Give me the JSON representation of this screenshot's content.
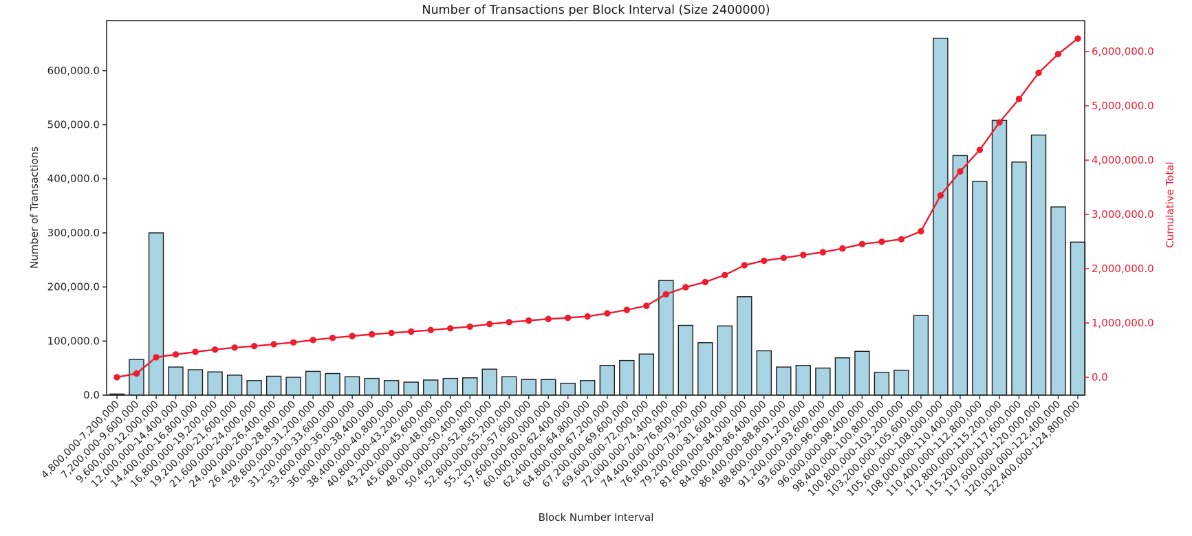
{
  "colors": {
    "bar_fill": "#A7D3E2",
    "bar_edge": "#1c1c1c",
    "line": "#ED1C2E",
    "spine": "#2a2a2a",
    "tick_text": "#262626",
    "title_text": "#1a1a1a"
  },
  "chart_data": {
    "type": "bar",
    "title": "Number of Transactions per Block Interval (Size 2400000)",
    "xlabel": "Block Number Interval",
    "ylabel_left": "Number of Transactions",
    "ylabel_right": "Cumulative Total",
    "legend": "none",
    "grid": false,
    "categories": [
      "4,800,000-7,200,000",
      "7,200,000-9,600,000",
      "9,600,000-12,000,000",
      "12,000,000-14,400,000",
      "14,400,000-16,800,000",
      "16,800,000-19,200,000",
      "19,200,000-21,600,000",
      "21,600,000-24,000,000",
      "24,000,000-26,400,000",
      "26,400,000-28,800,000",
      "28,800,000-31,200,000",
      "31,200,000-33,600,000",
      "33,600,000-36,000,000",
      "36,000,000-38,400,000",
      "38,400,000-40,800,000",
      "40,800,000-43,200,000",
      "43,200,000-45,600,000",
      "45,600,000-48,000,000",
      "48,000,000-50,400,000",
      "50,400,000-52,800,000",
      "52,800,000-55,200,000",
      "55,200,000-57,600,000",
      "57,600,000-60,000,000",
      "60,000,000-62,400,000",
      "62,400,000-64,800,000",
      "64,800,000-67,200,000",
      "67,200,000-69,600,000",
      "69,600,000-72,000,000",
      "72,000,000-74,400,000",
      "74,400,000-76,800,000",
      "76,800,000-79,200,000",
      "79,200,000-81,600,000",
      "81,600,000-84,000,000",
      "84,000,000-86,400,000",
      "86,400,000-88,800,000",
      "88,800,000-91,200,000",
      "91,200,000-93,600,000",
      "93,600,000-96,000,000",
      "96,000,000-98,400,000",
      "98,400,000-100,800,000",
      "100,800,000-103,200,000",
      "103,200,000-105,600,000",
      "105,600,000-108,000,000",
      "108,000,000-110,400,000",
      "110,400,000-112,800,000",
      "112,800,000-115,200,000",
      "115,200,000-117,600,000",
      "117,600,000-120,000,000",
      "120,000,000-122,400,000",
      "122,400,000-124,800,000"
    ],
    "series": [
      {
        "name": "Number of Transactions",
        "type": "bar",
        "axis": "left",
        "values": [
          2000,
          66000,
          300000,
          52000,
          47000,
          43000,
          37000,
          27000,
          35000,
          33000,
          44000,
          40000,
          34000,
          31000,
          27000,
          24000,
          28000,
          31000,
          32000,
          48000,
          34000,
          29000,
          29000,
          22000,
          27000,
          55000,
          64000,
          76000,
          212000,
          129000,
          97000,
          128000,
          182000,
          82000,
          52000,
          55000,
          50000,
          69000,
          81000,
          42000,
          46000,
          147000,
          660000,
          443000,
          395000,
          508000,
          431000,
          481000,
          348000,
          283000
        ]
      },
      {
        "name": "Cumulative Total",
        "type": "line",
        "axis": "right",
        "values": [
          2000,
          68000,
          368000,
          420000,
          467000,
          510000,
          547000,
          574000,
          609000,
          642000,
          686000,
          726000,
          760000,
          791000,
          818000,
          842000,
          870000,
          901000,
          933000,
          981000,
          1015000,
          1044000,
          1073000,
          1095000,
          1122000,
          1177000,
          1241000,
          1317000,
          1529000,
          1658000,
          1755000,
          1883000,
          2065000,
          2147000,
          2199000,
          2254000,
          2304000,
          2373000,
          2454000,
          2496000,
          2542000,
          2689000,
          3349000,
          3792000,
          4187000,
          4695000,
          5126000,
          5607000,
          5955000,
          6238000
        ]
      }
    ],
    "left_axis": {
      "min": 0,
      "max": 692500,
      "ticks": [
        0,
        100000,
        200000,
        300000,
        400000,
        500000,
        600000
      ],
      "tick_labels": [
        "0.0",
        "100,000.0",
        "200,000.0",
        "300,000.0",
        "400,000.0",
        "500,000.0",
        "600,000.0"
      ]
    },
    "right_axis": {
      "min": -329000,
      "max": 6570000,
      "ticks": [
        0,
        1000000,
        2000000,
        3000000,
        4000000,
        5000000,
        6000000
      ],
      "tick_labels": [
        "0.0",
        "1,000,000.0",
        "2,000,000.0",
        "3,000,000.0",
        "4,000,000.0",
        "5,000,000.0",
        "6,000,000.0"
      ]
    }
  }
}
